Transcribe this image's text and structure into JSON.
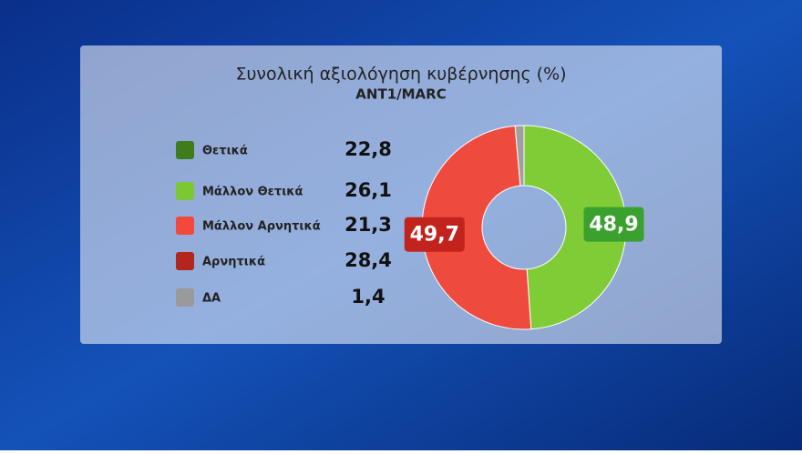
{
  "chart_data": {
    "type": "donut",
    "title": "Συνολική αξιολόγηση κυβέρνησης (%)",
    "subtitle": "ANT1/MARC",
    "categories": [
      "Θετικά",
      "Μάλλον Θετικά",
      "Μάλλον Αρνητικά",
      "Αρνητικά",
      "ΔΑ"
    ],
    "values": [
      22.8,
      26.1,
      21.3,
      28.4,
      1.4
    ],
    "value_labels": [
      "22,8",
      "26,1",
      "21,3",
      "28,4",
      "1,4"
    ],
    "colors": [
      "#3f7d1c",
      "#7cc833",
      "#f2493e",
      "#b3261e",
      "#9a9a9a"
    ],
    "donut": {
      "values": [
        48.9,
        49.7,
        1.4
      ],
      "value_labels": [
        "48,9",
        "49,7",
        null
      ],
      "colors": [
        "#80cc36",
        "#ee4a3e",
        "#a0a0a0"
      ],
      "label_colors": [
        "#3aa02e",
        "#c2231c",
        null
      ]
    }
  }
}
